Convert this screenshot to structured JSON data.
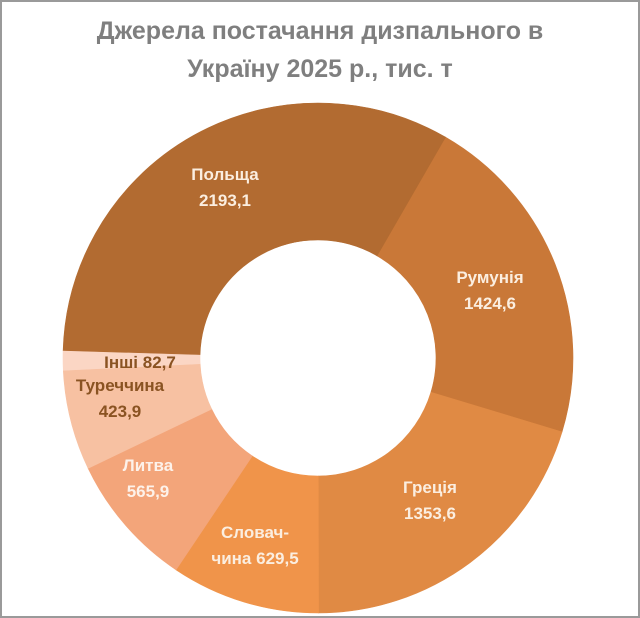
{
  "title": {
    "line1": "Джерела постачання дизпального в",
    "line2": "Україну 2025 р., тис. т"
  },
  "chart_data": {
    "type": "pie",
    "subtype": "donut",
    "title": "Джерела постачання дизпального в Україну 2025 р., тис. т",
    "unit": "тис. т",
    "start_angle_deg": 30,
    "direction": "clockwise",
    "legend": "none (data labels on slices)",
    "categories": [
      "Румунія",
      "Греція",
      "Словаччина",
      "Литва",
      "Туреччина",
      "Інші",
      "Польща"
    ],
    "values": [
      1424.6,
      1353.6,
      629.5,
      565.9,
      423.9,
      82.7,
      2193.1
    ],
    "colors": [
      "#c97838",
      "#e08a44",
      "#f0944a",
      "#f3a57a",
      "#f7c1a2",
      "#fbd6c4",
      "#b26b31"
    ],
    "labels": [
      {
        "lines": [
          "Румунія",
          "1424,6"
        ],
        "color": "#fbeee0"
      },
      {
        "lines": [
          "Греція",
          "1353,6"
        ],
        "color": "#fbeee0"
      },
      {
        "lines": [
          "Словач-",
          "чина 629,5"
        ],
        "color": "#fbeee0"
      },
      {
        "lines": [
          "Литва",
          "565,9"
        ],
        "color": "#fdf2ea"
      },
      {
        "lines": [
          "Туреччина",
          "423,9"
        ],
        "color": "#8a5322"
      },
      {
        "lines": [
          "Інші 82,7"
        ],
        "color": "#8a5322"
      },
      {
        "lines": [
          "Польща",
          "2193,1"
        ],
        "color": "#fbeee0"
      }
    ]
  }
}
